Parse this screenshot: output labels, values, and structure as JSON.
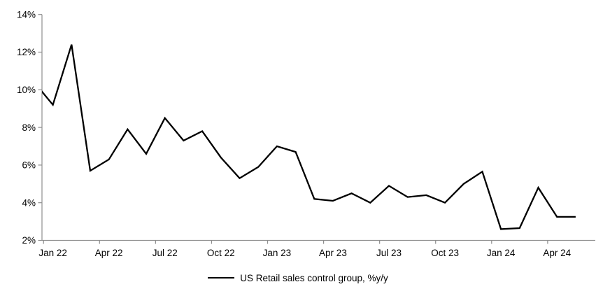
{
  "chart_data": {
    "type": "line",
    "title": "",
    "xlabel": "",
    "ylabel": "",
    "grid": false,
    "legend_position": "bottom",
    "axis_color": "#8e8e8e",
    "background_color": "#ffffff",
    "y_axis": {
      "min": 2,
      "max": 14,
      "step": 2,
      "suffix": "%"
    },
    "x_tick_labels": [
      "Jan 22",
      "Apr 22",
      "Jul 22",
      "Oct 22",
      "Jan 23",
      "Apr 23",
      "Jul 23",
      "Oct 23",
      "Jan 24",
      "Apr 24"
    ],
    "x_tick_indices": [
      1,
      4,
      7,
      10,
      13,
      16,
      19,
      22,
      25,
      28
    ],
    "series": [
      {
        "name": "US Retail sales control group, %y/y",
        "color": "#000000",
        "x": [
          "Dec 21",
          "Jan 22",
          "Feb 22",
          "Mar 22",
          "Apr 22",
          "May 22",
          "Jun 22",
          "Jul 22",
          "Aug 22",
          "Sep 22",
          "Oct 22",
          "Nov 22",
          "Dec 22",
          "Jan 23",
          "Feb 23",
          "Mar 23",
          "Apr 23",
          "May 23",
          "Jun 23",
          "Jul 23",
          "Aug 23",
          "Sep 23",
          "Oct 23",
          "Nov 23",
          "Dec 23",
          "Jan 24",
          "Feb 24",
          "Mar 24",
          "Apr 24",
          "May 24"
        ],
        "values": [
          10.4,
          9.2,
          12.4,
          5.7,
          6.3,
          7.9,
          6.6,
          8.5,
          7.3,
          7.8,
          6.4,
          5.3,
          5.9,
          7.0,
          6.7,
          4.2,
          4.1,
          4.5,
          4.0,
          4.9,
          4.3,
          4.4,
          4.0,
          5.0,
          5.65,
          2.6,
          2.65,
          4.8,
          3.25,
          3.25
        ]
      }
    ]
  }
}
